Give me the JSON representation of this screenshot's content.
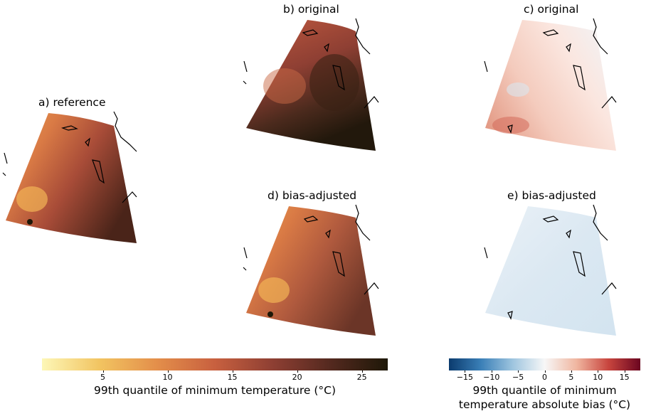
{
  "panels": {
    "a": {
      "title": "a) reference"
    },
    "b": {
      "title": "b) original"
    },
    "c": {
      "title": "c) original"
    },
    "d": {
      "title": "d) bias-adjusted"
    },
    "e": {
      "title": "e) bias-adjusted"
    }
  },
  "colorbar_temp": {
    "label": "99th quantile of minimum temperature (°C)",
    "ticks": [
      "5",
      "10",
      "15",
      "20",
      "25"
    ],
    "tick_values": [
      5,
      10,
      15,
      20,
      25
    ],
    "range": [
      0.3,
      27
    ],
    "colors": [
      "#fdf7b7",
      "#f2c461",
      "#e38e4a",
      "#c8603f",
      "#8e3f33",
      "#54291f",
      "#1e1808"
    ]
  },
  "colorbar_bias": {
    "label_line1": "99th quantile of minimum",
    "label_line2": "temperature absolute bias (°C)",
    "ticks": [
      "−15",
      "−10",
      "−5",
      "0",
      "5",
      "10",
      "15"
    ],
    "tick_values": [
      -15,
      -10,
      -5,
      0,
      5,
      10,
      15
    ],
    "range": [
      -18,
      18
    ],
    "colors": [
      "#0b3b6e",
      "#3a7fb7",
      "#9ec5df",
      "#f7f7f7",
      "#f0b6a0",
      "#c8453e",
      "#6b0520"
    ]
  }
}
